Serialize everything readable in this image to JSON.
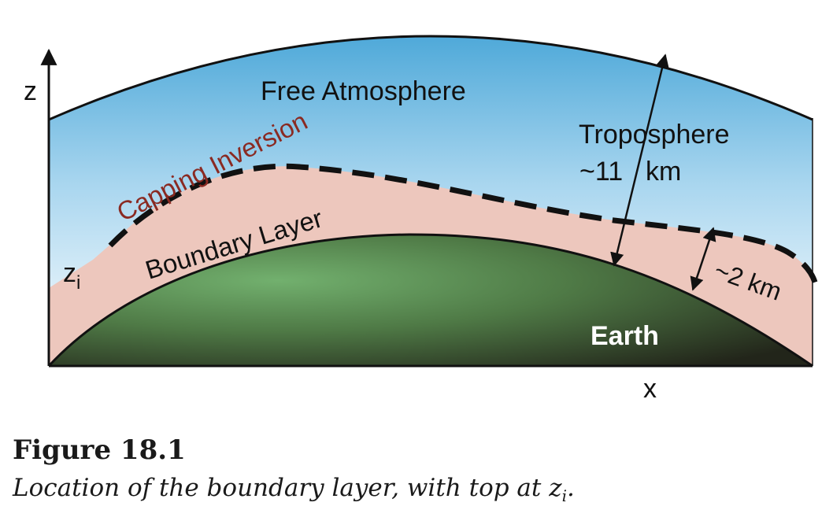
{
  "axes": {
    "z_label": "z",
    "x_label": "x",
    "zi_label": "z",
    "zi_sub": "i"
  },
  "regions": {
    "free_atmosphere": "Free Atmosphere",
    "capping_inversion": "Capping Inversion",
    "boundary_layer": "Boundary Layer",
    "earth": "Earth"
  },
  "annotations": {
    "troposphere_label": "Troposphere",
    "troposphere_depth": "~11 km",
    "troposphere_depth_a": "~11",
    "troposphere_depth_b": "km",
    "boundary_depth": "~2 km"
  },
  "caption": {
    "title": "Figure 18.1",
    "text": "Location of the boundary layer, with top at z",
    "text_sub": "i",
    "text_end": "."
  },
  "colors": {
    "sky_top": "#5bb3de",
    "sky_bottom": "#ffffff",
    "boundary": "#edc7bd",
    "earth_light": "#6fae6c",
    "earth_dark": "#22261a",
    "capping_text": "#8a2a22",
    "line": "#111111"
  }
}
